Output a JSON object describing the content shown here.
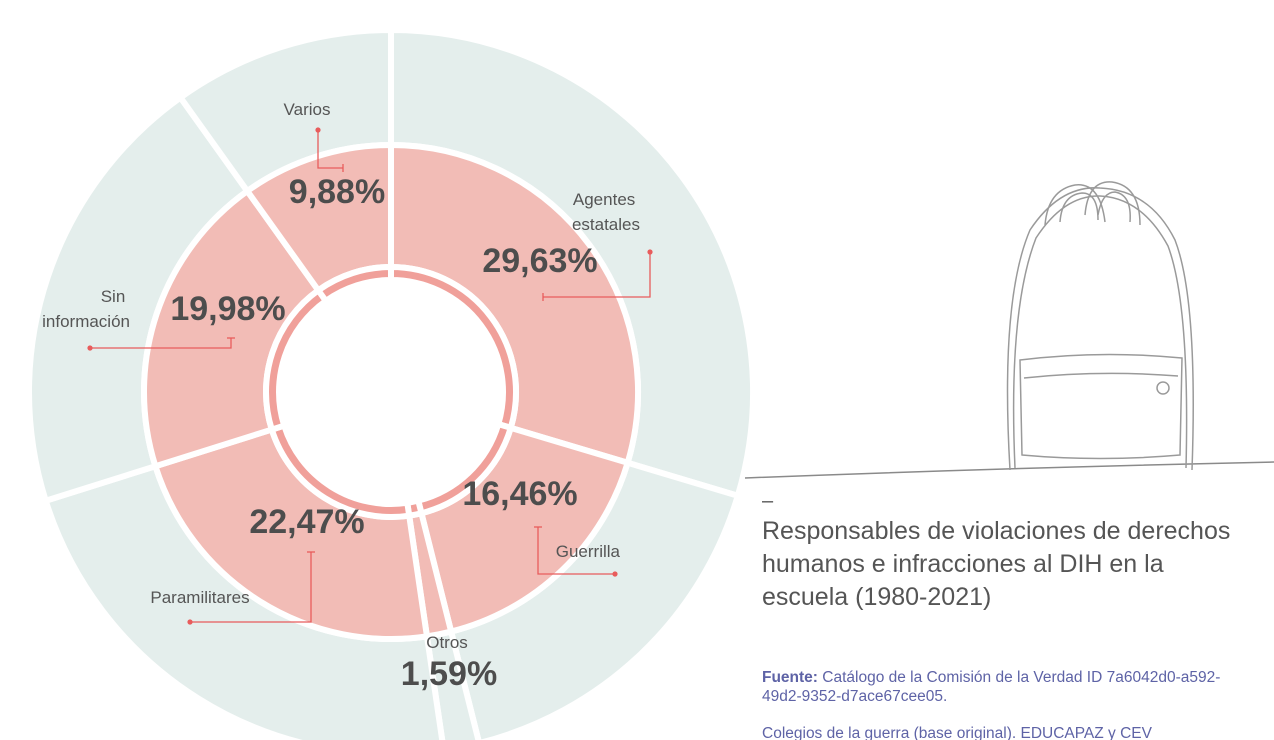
{
  "chart_data": {
    "type": "donut",
    "categories": [
      "Agentes estatales",
      "Guerrilla",
      "Otros",
      "Paramilitares",
      "Sin información",
      "Varios"
    ],
    "values": [
      29.63,
      16.46,
      1.59,
      22.47,
      19.98,
      9.88
    ],
    "value_labels": [
      "29,63%",
      "16,46%",
      "1,59%",
      "22,47%",
      "19,98%",
      "9,88%"
    ],
    "color": "#f2bcb6",
    "inner_color": "#f0a09a",
    "outer_color": "#e4eeec",
    "title_marker": "–",
    "title": "Responsables de violaciones de derechos humanos e infracciones al DIH en la escuela (1980-2021)",
    "source_label": "Fuente:",
    "source": "Catálogo de la Comisión de la Verdad ID 7a6042d0-a592-49d2-9352-d7ace67cee05.",
    "note": "Colegios de la guerra (base original). EDUCAPAZ y CEV"
  }
}
